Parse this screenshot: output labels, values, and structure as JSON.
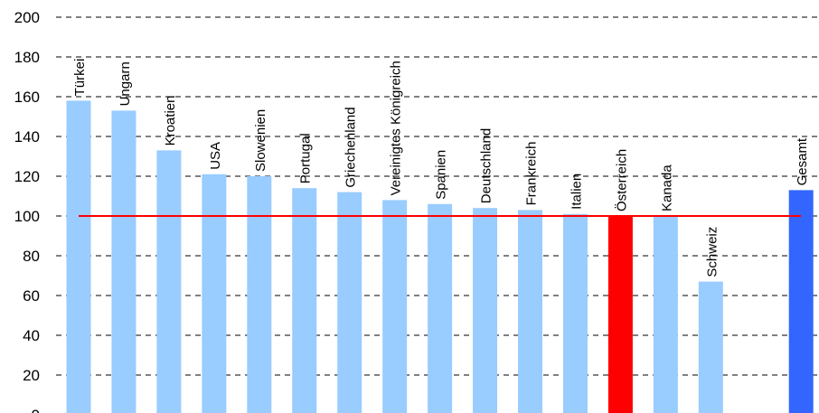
{
  "chart_data": {
    "type": "bar",
    "title": "",
    "xlabel": "",
    "ylabel": "",
    "ylim": [
      0,
      200
    ],
    "yticks": [
      0,
      20,
      40,
      60,
      80,
      100,
      120,
      140,
      160,
      180,
      200
    ],
    "grid": "horizontal dashed",
    "legend": "none",
    "categories": [
      "Türkei",
      "Ungarn",
      "Kroatien",
      "USA",
      "Slowenien",
      "Portugal",
      "Griechenland",
      "Vereinigtes Königreich",
      "Spanien",
      "Deutschland",
      "Frankreich",
      "Italien",
      "Österreich",
      "Kanada",
      "Schweiz",
      "",
      "Gesamt"
    ],
    "values": [
      158,
      153,
      133,
      121,
      120,
      114,
      112,
      108,
      106,
      104,
      103,
      101,
      100,
      100,
      67,
      null,
      113
    ],
    "bar_colors": [
      "#99ccff",
      "#99ccff",
      "#99ccff",
      "#99ccff",
      "#99ccff",
      "#99ccff",
      "#99ccff",
      "#99ccff",
      "#99ccff",
      "#99ccff",
      "#99ccff",
      "#99ccff",
      "#ff0000",
      "#99ccff",
      "#99ccff",
      "#99ccff",
      "#3366ff"
    ],
    "reference_line": {
      "value": 100,
      "color": "#ff0000"
    }
  }
}
